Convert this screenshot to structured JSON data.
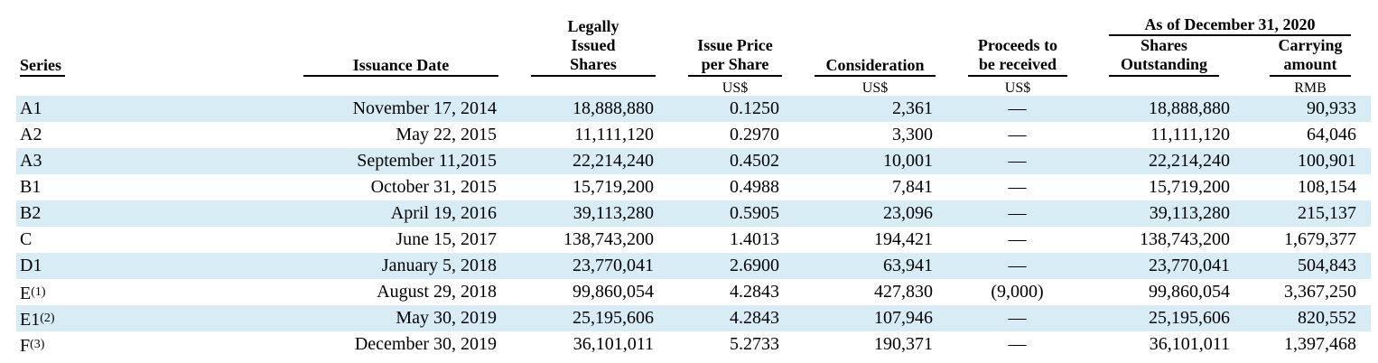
{
  "header": {
    "series": "Series",
    "issuance_date": "Issuance Date",
    "legally_issued": [
      "Legally",
      "Issued",
      "Shares"
    ],
    "issue_price": [
      "Issue Price",
      "per Share"
    ],
    "consideration": "Consideration",
    "proceeds": [
      "Proceeds to",
      "be received"
    ],
    "as_of": "As of December 31, 2020",
    "shares_outstanding": [
      "Shares",
      "Outstanding"
    ],
    "carrying_amount": [
      "Carrying",
      "amount"
    ]
  },
  "units": {
    "issue_price": "US$",
    "consideration": "US$",
    "proceeds": "US$",
    "carrying_amount": "RMB"
  },
  "rows": [
    {
      "series": "A1",
      "note": "",
      "date": "November 17, 2014",
      "legally_issued": "18,888,880",
      "issue_price": "0.1250",
      "consideration": "2,361",
      "proceeds": "—",
      "shares_outstanding": "18,888,880",
      "carrying_amount": "90,933"
    },
    {
      "series": "A2",
      "note": "",
      "date": "May 22, 2015",
      "legally_issued": "11,111,120",
      "issue_price": "0.2970",
      "consideration": "3,300",
      "proceeds": "—",
      "shares_outstanding": "11,111,120",
      "carrying_amount": "64,046"
    },
    {
      "series": "A3",
      "note": "",
      "date": "September 11,2015",
      "legally_issued": "22,214,240",
      "issue_price": "0.4502",
      "consideration": "10,001",
      "proceeds": "—",
      "shares_outstanding": "22,214,240",
      "carrying_amount": "100,901"
    },
    {
      "series": "B1",
      "note": "",
      "date": "October 31, 2015",
      "legally_issued": "15,719,200",
      "issue_price": "0.4988",
      "consideration": "7,841",
      "proceeds": "—",
      "shares_outstanding": "15,719,200",
      "carrying_amount": "108,154"
    },
    {
      "series": "B2",
      "note": "",
      "date": "April 19, 2016",
      "legally_issued": "39,113,280",
      "issue_price": "0.5905",
      "consideration": "23,096",
      "proceeds": "—",
      "shares_outstanding": "39,113,280",
      "carrying_amount": "215,137"
    },
    {
      "series": "C",
      "note": "",
      "date": "June 15, 2017",
      "legally_issued": "138,743,200",
      "issue_price": "1.4013",
      "consideration": "194,421",
      "proceeds": "—",
      "shares_outstanding": "138,743,200",
      "carrying_amount": "1,679,377"
    },
    {
      "series": "D1",
      "note": "",
      "date": "January 5, 2018",
      "legally_issued": "23,770,041",
      "issue_price": "2.6900",
      "consideration": "63,941",
      "proceeds": "—",
      "shares_outstanding": "23,770,041",
      "carrying_amount": "504,843"
    },
    {
      "series": "E",
      "note": "(1)",
      "date": "August 29, 2018",
      "legally_issued": "99,860,054",
      "issue_price": "4.2843",
      "consideration": "427,830",
      "proceeds": "(9,000)",
      "shares_outstanding": "99,860,054",
      "carrying_amount": "3,367,250"
    },
    {
      "series": "E1",
      "note": "(2)",
      "date": "May 30, 2019",
      "legally_issued": "25,195,606",
      "issue_price": "4.2843",
      "consideration": "107,946",
      "proceeds": "—",
      "shares_outstanding": "25,195,606",
      "carrying_amount": "820,552"
    },
    {
      "series": "F",
      "note": "(3)",
      "date": "December 30, 2019",
      "legally_issued": "36,101,011",
      "issue_price": "5.2733",
      "consideration": "190,371",
      "proceeds": "—",
      "shares_outstanding": "36,101,011",
      "carrying_amount": "1,397,468"
    }
  ],
  "colors": {
    "row_shade": "#d8ecf6"
  }
}
